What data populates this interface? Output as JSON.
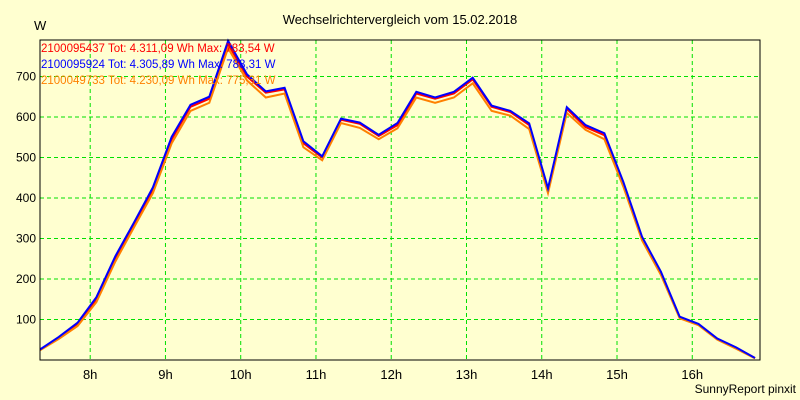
{
  "chart_data": {
    "type": "line",
    "title": "Wechselrichtervergleich vom 15.02.2018",
    "ylabel": "W",
    "xlabel": "",
    "xlim": [
      7.333,
      16.9
    ],
    "ylim": [
      0,
      790
    ],
    "grid": true,
    "yticks": [
      100,
      200,
      300,
      400,
      500,
      600,
      700
    ],
    "xticks": [
      8,
      9,
      10,
      11,
      12,
      13,
      14,
      15,
      16
    ],
    "xtick_labels": [
      "8h",
      "9h",
      "10h",
      "11h",
      "12h",
      "13h",
      "14h",
      "15h",
      "16h"
    ],
    "x_start": 7.333,
    "x_step": 0.25,
    "series": [
      {
        "name": "2100095437",
        "label": "2100095437 Tot: 4.311,09 Wh Max: 783,54 W",
        "color": "#ff0000",
        "values": [
          25,
          55,
          88,
          150,
          250,
          335,
          420,
          545,
          625,
          645,
          780,
          700,
          660,
          668,
          535,
          500,
          593,
          583,
          553,
          580,
          658,
          645,
          658,
          693,
          625,
          612,
          580,
          420,
          620,
          575,
          555,
          435,
          300,
          215,
          105,
          88,
          52,
          30,
          5
        ]
      },
      {
        "name": "2100049733",
        "label": "2100049733 Tot: 4.230,09 Wh Max: 775,31 W",
        "color": "#ff8000",
        "values": [
          24,
          52,
          84,
          143,
          243,
          328,
          412,
          535,
          615,
          635,
          770,
          690,
          648,
          658,
          525,
          493,
          585,
          573,
          545,
          572,
          648,
          635,
          648,
          683,
          615,
          603,
          570,
          412,
          610,
          568,
          545,
          428,
          295,
          210,
          103,
          86,
          50,
          28,
          4
        ]
      },
      {
        "name": "2100095924",
        "label": "2100095924 Tot: 4.305,89 Wh Max: 788,31 W",
        "color": "#0000ff",
        "values": [
          26,
          57,
          92,
          155,
          256,
          340,
          426,
          551,
          630,
          650,
          788,
          705,
          663,
          672,
          540,
          503,
          596,
          586,
          556,
          585,
          662,
          648,
          662,
          697,
          628,
          615,
          584,
          424,
          624,
          580,
          560,
          440,
          304,
          218,
          107,
          89,
          53,
          31,
          5
        ]
      }
    ]
  },
  "footer": "SunnyReport pinxit"
}
